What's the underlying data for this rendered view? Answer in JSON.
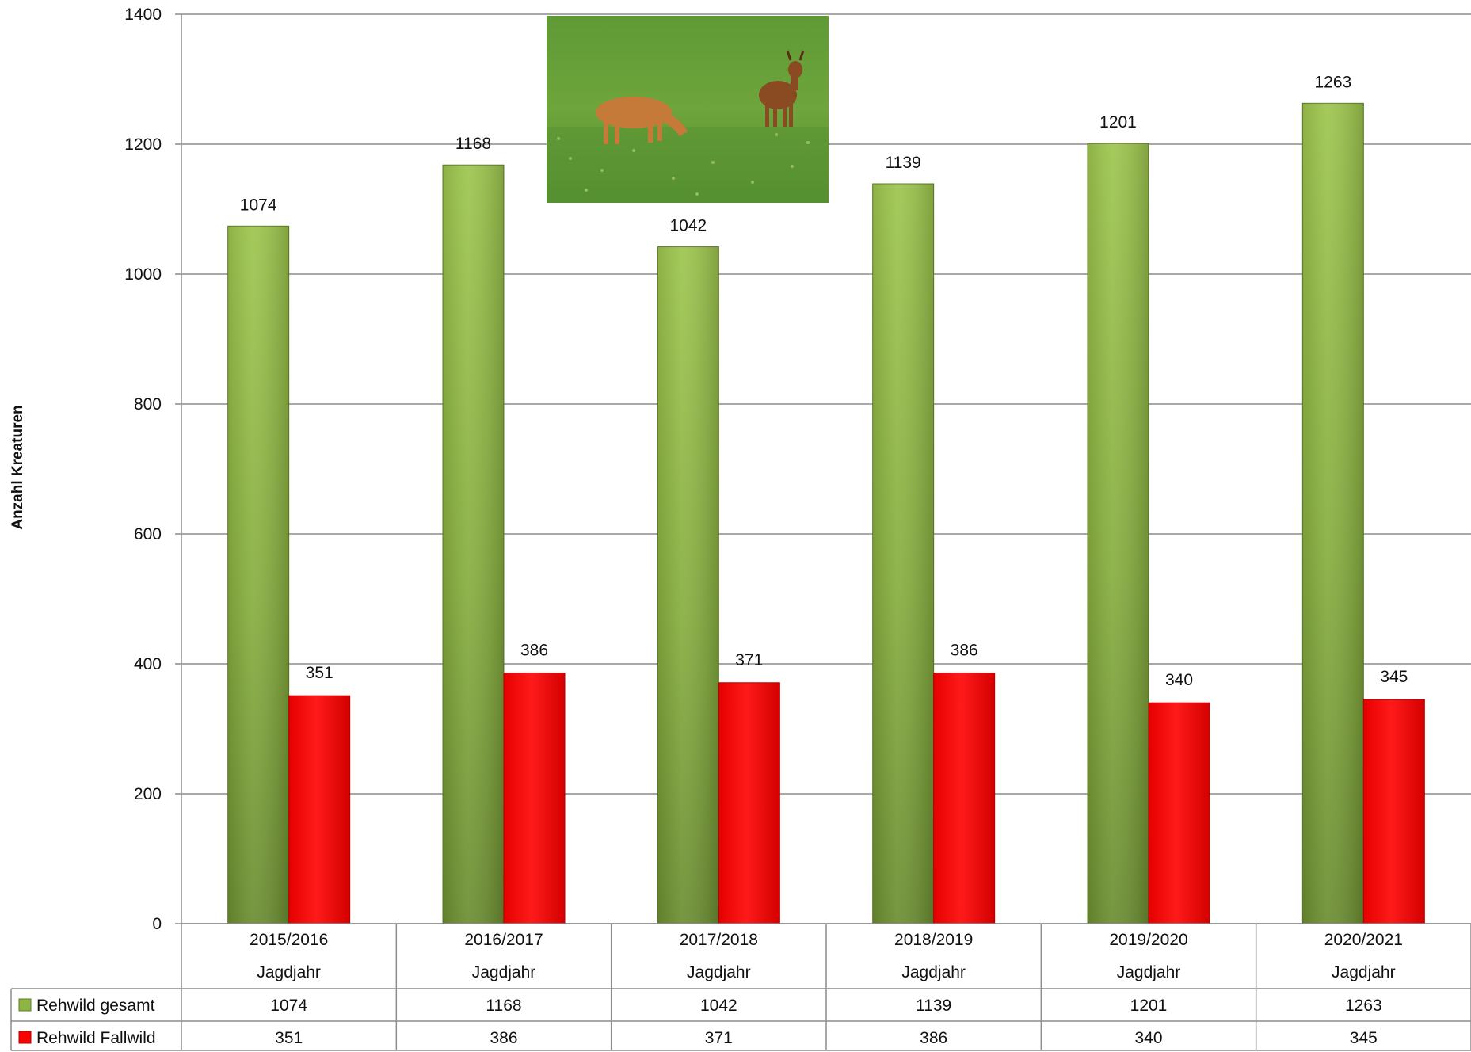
{
  "chart_data": {
    "type": "bar",
    "title": "",
    "xlabel": "",
    "ylabel": "Anzahl Kreaturen",
    "ylim": [
      0,
      1400
    ],
    "yticks": [
      0,
      200,
      400,
      600,
      800,
      1000,
      1200,
      1400
    ],
    "grid": true,
    "legend": "data-table",
    "categories": [
      "2015/2016",
      "2016/2017",
      "2017/2018",
      "2018/2019",
      "2019/2020",
      "2020/2021"
    ],
    "category_sublabel": "Jagdjahr",
    "series": [
      {
        "name": "Rehwild gesamt",
        "color": "#8db543",
        "values": [
          1074,
          1168,
          1042,
          1139,
          1201,
          1263
        ]
      },
      {
        "name": "Rehwild Fallwild",
        "color": "#ff0000",
        "values": [
          351,
          386,
          371,
          386,
          340,
          345
        ]
      }
    ],
    "inset_image": "roe-deer-photo"
  }
}
